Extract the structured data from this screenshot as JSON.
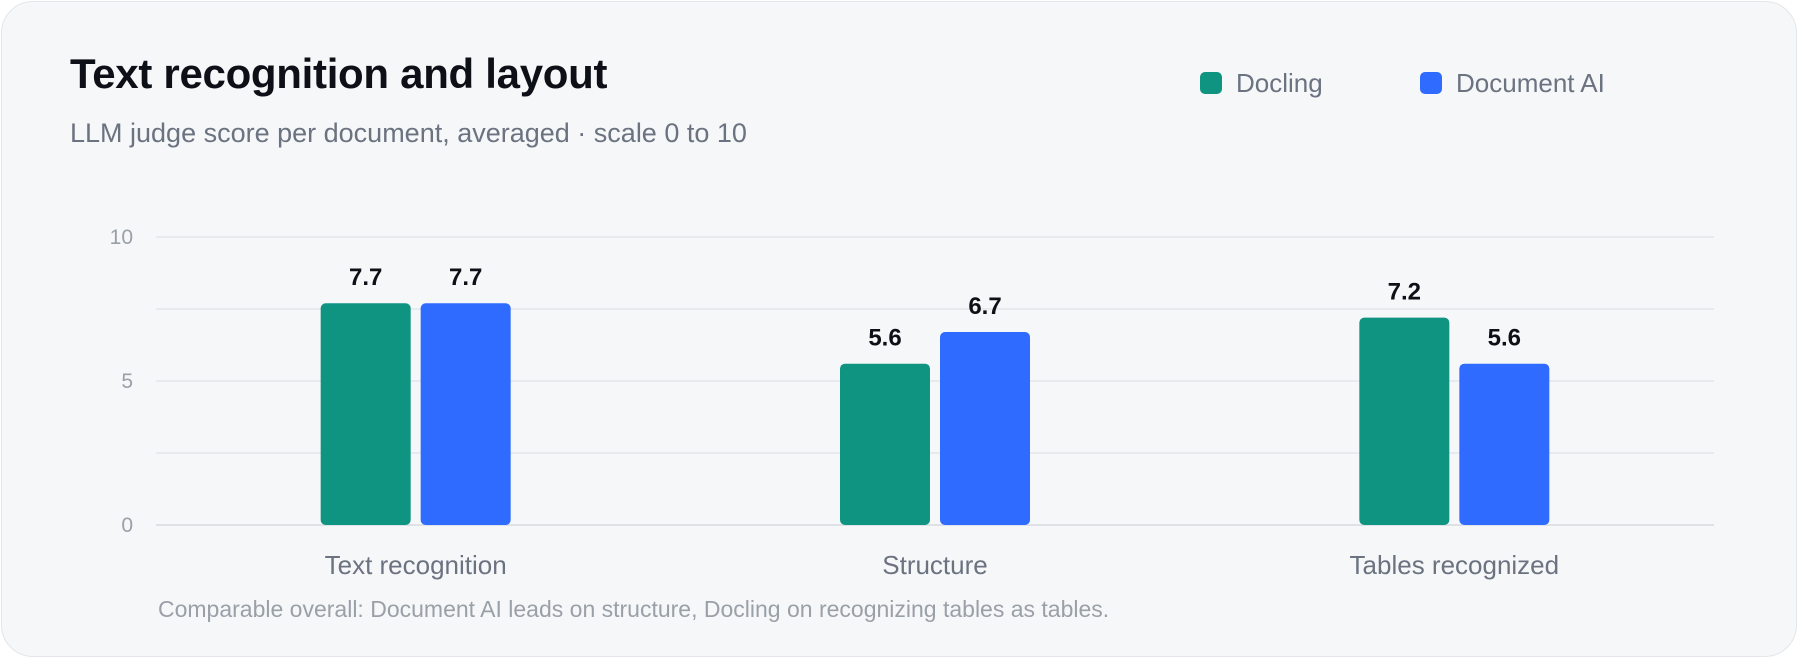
{
  "chart_data": {
    "type": "bar",
    "title": "Text recognition and layout",
    "subtitle": "LLM judge score per document, averaged · scale 0 to 10",
    "categories": [
      "Text recognition",
      "Structure",
      "Tables recognized"
    ],
    "series": [
      {
        "name": "Docling",
        "values": [
          7.7,
          5.6,
          7.2
        ],
        "color": "#0f9482"
      },
      {
        "name": "Document AI",
        "values": [
          7.7,
          6.7,
          5.6
        ],
        "color": "#2f6bff"
      }
    ],
    "ylim": [
      0,
      10
    ],
    "yticks": [
      0,
      5,
      10
    ],
    "grid": true,
    "legend_position": "top-right",
    "footnote": "Comparable overall: Document AI leads on structure, Docling on recognizing tables as tables."
  }
}
